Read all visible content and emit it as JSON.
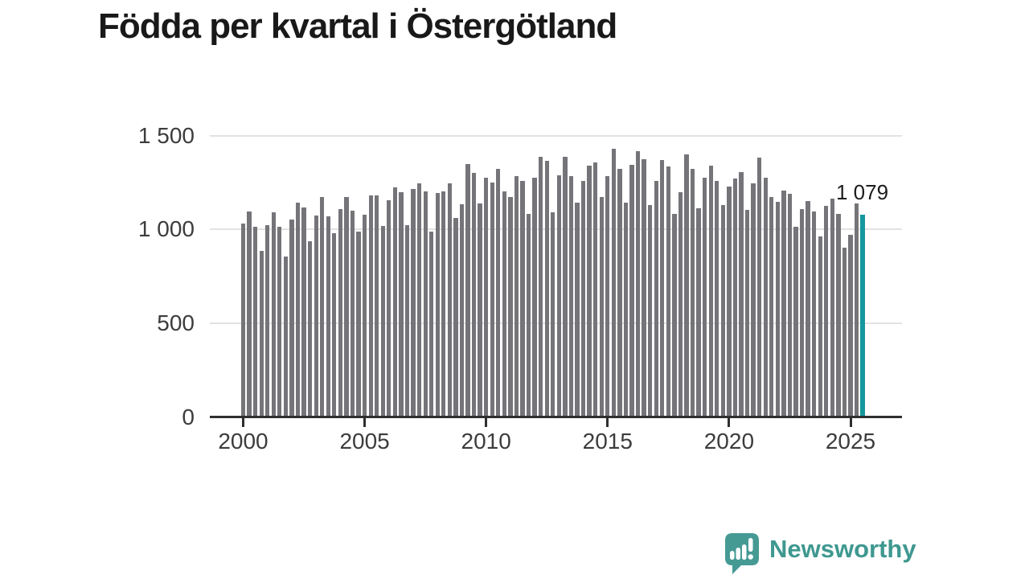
{
  "title": "Födda per kvartal i Östergötland",
  "annotation": {
    "label": "1 079"
  },
  "branding": {
    "name": "Newsworthy"
  },
  "colors": {
    "bar": "#757479",
    "highlight": "#13979d",
    "axis": "#2f2f2f",
    "grid": "#e2e2e2",
    "title": "#191919",
    "tick_label": "#3c3c3c",
    "logo_text": "#3e9890",
    "logo_icon": "#459a94"
  },
  "chart_data": {
    "type": "bar",
    "title": "Födda per kvartal i Östergötland",
    "frequency": "quarterly",
    "x_start": "2000-Q1",
    "x_end": "2025-Q3",
    "values": [
      1029,
      1093,
      1014,
      886,
      1021,
      1089,
      1014,
      857,
      1054,
      1143,
      1117,
      935,
      1074,
      1171,
      1071,
      980,
      1107,
      1174,
      1100,
      986,
      1079,
      1181,
      1181,
      1017,
      1157,
      1224,
      1200,
      1021,
      1217,
      1246,
      1203,
      986,
      1193,
      1201,
      1243,
      1059,
      1134,
      1350,
      1300,
      1136,
      1274,
      1250,
      1321,
      1203,
      1174,
      1285,
      1260,
      1084,
      1276,
      1385,
      1365,
      1090,
      1286,
      1386,
      1283,
      1143,
      1257,
      1340,
      1357,
      1174,
      1283,
      1431,
      1321,
      1143,
      1343,
      1417,
      1374,
      1131,
      1260,
      1369,
      1336,
      1083,
      1200,
      1400,
      1321,
      1114,
      1274,
      1340,
      1260,
      1129,
      1226,
      1269,
      1307,
      1103,
      1243,
      1381,
      1274,
      1171,
      1146,
      1207,
      1189,
      1014,
      1110,
      1150,
      1096,
      964,
      1126,
      1164,
      1083,
      903,
      969,
      1136,
      1079
    ],
    "highlight_index": 102,
    "highlight_value_label": "1 079",
    "x_ticks": [
      "2000",
      "2005",
      "2010",
      "2015",
      "2020",
      "2025"
    ],
    "x_tick_interval_quarters": 20,
    "y_ticks": [
      {
        "value": 1500,
        "label": "1 500"
      },
      {
        "value": 1000,
        "label": "1 000"
      },
      {
        "value": 500,
        "label": "500"
      },
      {
        "value": 0,
        "label": "0"
      }
    ],
    "ylim": [
      0,
      1500
    ],
    "grid": "horizontal",
    "legend": "none"
  }
}
